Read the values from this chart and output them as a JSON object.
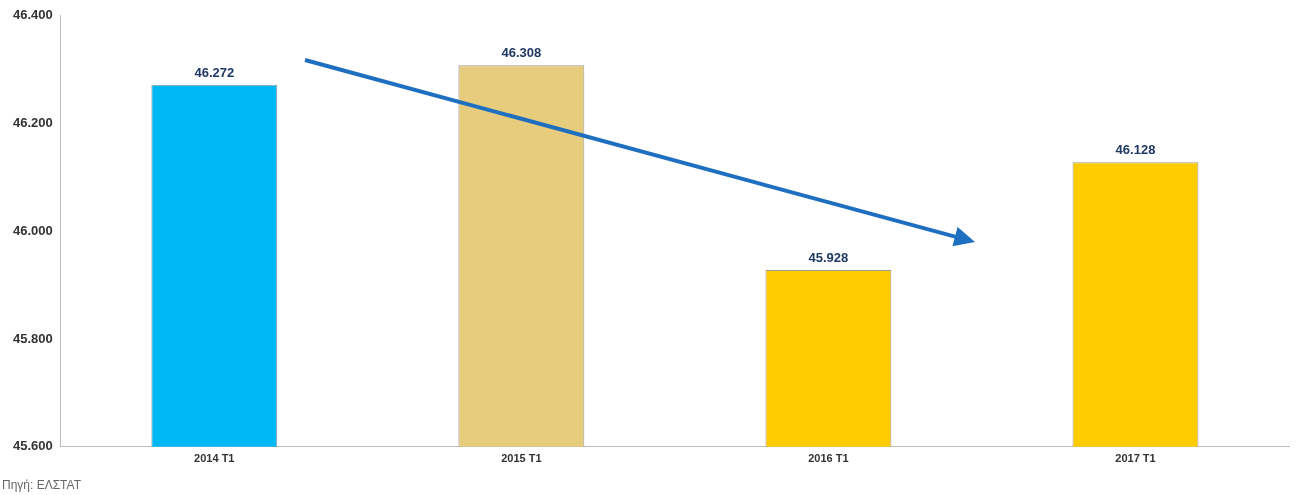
{
  "chart_data": {
    "type": "bar",
    "categories": [
      "2014 T1",
      "2015 T1",
      "2016 T1",
      "2017 T1"
    ],
    "values": [
      46272,
      46308,
      45928,
      46128
    ],
    "colors": [
      "#00b8f4",
      "#e6cc7c",
      "#ffcc00",
      "#ffcc00"
    ],
    "value_labels": [
      "46.272",
      "46.308",
      "45.928",
      "46.128"
    ],
    "ylim": [
      45600,
      46400
    ],
    "yticks": [
      {
        "value": 45600,
        "label": "45.600"
      },
      {
        "value": 45800,
        "label": "45.800"
      },
      {
        "value": 46000,
        "label": "46.000"
      },
      {
        "value": 46200,
        "label": "46.200"
      },
      {
        "value": 46400,
        "label": "46.400"
      }
    ],
    "grid": false,
    "legend": false,
    "annotations": [
      "Πηγή: ΕΛΣΤΑΤ"
    ]
  }
}
